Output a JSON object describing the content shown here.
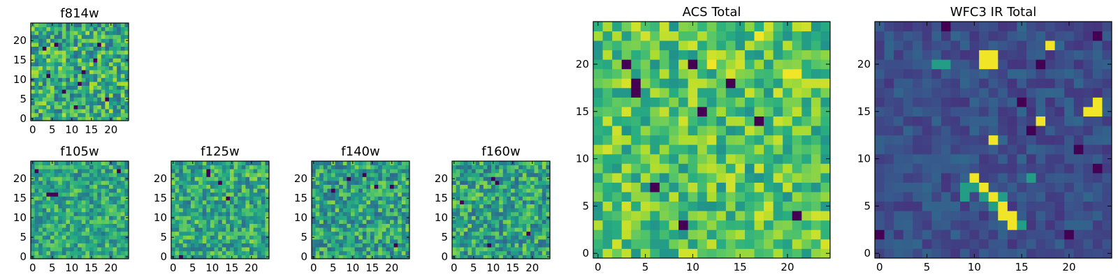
{
  "chart_data": [
    {
      "id": "f814w",
      "type": "heatmap",
      "title": "f814w",
      "grid_size": 25,
      "colormap": "viridis",
      "xlim": [
        -0.5,
        24.5
      ],
      "ylim": [
        -0.5,
        24.5
      ],
      "xticks": [
        0,
        5,
        10,
        15,
        20
      ],
      "xtick_labels": [
        "0",
        "5",
        "10",
        "15",
        "20"
      ],
      "yticks": [
        0,
        5,
        10,
        15,
        20
      ],
      "ytick_labels": [
        "0",
        "5",
        "10",
        "15",
        "20"
      ],
      "value_range": [
        0,
        1
      ],
      "seed": 814,
      "base_level": 0.62,
      "noise": 0.28,
      "dark_pixels": [
        [
          3,
          18
        ],
        [
          11,
          3
        ],
        [
          6,
          19
        ],
        [
          16,
          15
        ],
        [
          12,
          9
        ],
        [
          8,
          7
        ],
        [
          19,
          5
        ],
        [
          4,
          11
        ],
        [
          17,
          19
        ],
        [
          13,
          12
        ]
      ],
      "bright_pixels": [],
      "values": []
    },
    {
      "id": "f105w",
      "type": "heatmap",
      "title": "f105w",
      "grid_size": 25,
      "colormap": "viridis",
      "xlim": [
        -0.5,
        24.5
      ],
      "ylim": [
        -0.5,
        24.5
      ],
      "xticks": [
        0,
        5,
        10,
        15,
        20
      ],
      "xtick_labels": [
        "0",
        "5",
        "10",
        "15",
        "20"
      ],
      "yticks": [
        0,
        5,
        10,
        15,
        20
      ],
      "ytick_labels": [
        "0",
        "5",
        "10",
        "15",
        "20"
      ],
      "value_range": [
        0,
        1
      ],
      "seed": 105,
      "base_level": 0.6,
      "noise": 0.22,
      "dark_pixels": [
        [
          1,
          22
        ],
        [
          4,
          16
        ],
        [
          5,
          16
        ],
        [
          6,
          16
        ],
        [
          22,
          22
        ]
      ],
      "bright_pixels": [],
      "values": []
    },
    {
      "id": "f125w",
      "type": "heatmap",
      "title": "f125w",
      "grid_size": 25,
      "colormap": "viridis",
      "xlim": [
        -0.5,
        24.5
      ],
      "ylim": [
        -0.5,
        24.5
      ],
      "xticks": [
        0,
        5,
        10,
        15,
        20
      ],
      "xtick_labels": [
        "0",
        "5",
        "10",
        "15",
        "20"
      ],
      "yticks": [
        0,
        5,
        10,
        15,
        20
      ],
      "ytick_labels": [
        "0",
        "5",
        "10",
        "15",
        "20"
      ],
      "value_range": [
        0,
        1
      ],
      "seed": 125,
      "base_level": 0.6,
      "noise": 0.24,
      "dark_pixels": [
        [
          9,
          21
        ],
        [
          9,
          22
        ],
        [
          12,
          19
        ],
        [
          2,
          0
        ],
        [
          14,
          15
        ]
      ],
      "bright_pixels": [],
      "values": []
    },
    {
      "id": "f140w",
      "type": "heatmap",
      "title": "f140w",
      "grid_size": 25,
      "colormap": "viridis",
      "xlim": [
        -0.5,
        24.5
      ],
      "ylim": [
        -0.5,
        24.5
      ],
      "xticks": [
        0,
        5,
        10,
        15,
        20
      ],
      "xtick_labels": [
        "0",
        "5",
        "10",
        "15",
        "20"
      ],
      "yticks": [
        0,
        5,
        10,
        15,
        20
      ],
      "ytick_labels": [
        "0",
        "5",
        "10",
        "15",
        "20"
      ],
      "value_range": [
        0,
        1
      ],
      "seed": 140,
      "base_level": 0.58,
      "noise": 0.25,
      "dark_pixels": [
        [
          13,
          21
        ],
        [
          9,
          20
        ],
        [
          5,
          17
        ],
        [
          16,
          18
        ],
        [
          20,
          18
        ],
        [
          21,
          3
        ]
      ],
      "bright_pixels": [],
      "values": []
    },
    {
      "id": "f160w",
      "type": "heatmap",
      "title": "f160w",
      "grid_size": 25,
      "colormap": "viridis",
      "xlim": [
        -0.5,
        24.5
      ],
      "ylim": [
        -0.5,
        24.5
      ],
      "xticks": [
        0,
        5,
        10,
        15,
        20
      ],
      "xtick_labels": [
        "0",
        "5",
        "10",
        "15",
        "20"
      ],
      "yticks": [
        0,
        5,
        10,
        15,
        20
      ],
      "ytick_labels": [
        "0",
        "5",
        "10",
        "15",
        "20"
      ],
      "value_range": [
        0,
        1
      ],
      "seed": 160,
      "base_level": 0.58,
      "noise": 0.25,
      "dark_pixels": [
        [
          10,
          20
        ],
        [
          11,
          19
        ],
        [
          2,
          14
        ],
        [
          9,
          3
        ],
        [
          19,
          6
        ]
      ],
      "bright_pixels": [],
      "values": []
    },
    {
      "id": "acs-total",
      "type": "heatmap",
      "title": "ACS Total",
      "grid_size": 25,
      "colormap": "viridis",
      "xlim": [
        -0.5,
        24.5
      ],
      "ylim": [
        -0.5,
        24.5
      ],
      "xticks": [
        0,
        5,
        10,
        15,
        20
      ],
      "xtick_labels": [
        "0",
        "5",
        "10",
        "15",
        "20"
      ],
      "yticks": [
        0,
        5,
        10,
        15,
        20
      ],
      "ytick_labels": [
        "0",
        "5",
        "10",
        "15",
        "20"
      ],
      "value_range": [
        0,
        1
      ],
      "seed": 7,
      "base_level": 0.72,
      "noise": 0.22,
      "dark_pixels": [
        [
          3,
          20
        ],
        [
          10,
          20
        ],
        [
          4,
          18
        ],
        [
          4,
          17
        ],
        [
          14,
          18
        ],
        [
          11,
          15
        ],
        [
          6,
          7
        ],
        [
          9,
          3
        ],
        [
          21,
          4
        ],
        [
          17,
          14
        ]
      ],
      "bright_pixels": [
        [
          12,
          20
        ],
        [
          20,
          19
        ],
        [
          21,
          19
        ],
        [
          17,
          23
        ]
      ],
      "values": []
    },
    {
      "id": "wfc3-ir-total",
      "type": "heatmap",
      "title": "WFC3 IR Total",
      "grid_size": 25,
      "colormap": "viridis",
      "xlim": [
        -0.5,
        24.5
      ],
      "ylim": [
        -0.5,
        24.5
      ],
      "xticks": [
        0,
        5,
        10,
        15,
        20
      ],
      "xtick_labels": [
        "0",
        "5",
        "10",
        "15",
        "20"
      ],
      "yticks": [
        0,
        5,
        10,
        15,
        20
      ],
      "ytick_labels": [
        "0",
        "5",
        "10",
        "15",
        "20"
      ],
      "value_range": [
        0,
        1
      ],
      "seed": 3,
      "base_level": 0.24,
      "noise": 0.09,
      "dark_pixels": [
        [
          7,
          24
        ],
        [
          17,
          20
        ],
        [
          23,
          23
        ],
        [
          15,
          16
        ],
        [
          21,
          11
        ],
        [
          23,
          9
        ],
        [
          0,
          2
        ],
        [
          20,
          2
        ],
        [
          16,
          13
        ]
      ],
      "bright_pixels": [
        [
          11,
          21
        ],
        [
          12,
          21
        ],
        [
          11,
          20
        ],
        [
          12,
          20
        ],
        [
          18,
          22
        ],
        [
          12,
          12
        ],
        [
          17,
          14
        ],
        [
          23,
          16
        ],
        [
          23,
          15
        ],
        [
          22,
          15
        ],
        [
          10,
          8
        ],
        [
          11,
          7
        ],
        [
          12,
          6
        ],
        [
          13,
          5
        ],
        [
          13,
          4
        ],
        [
          14,
          4
        ],
        [
          14,
          3
        ]
      ],
      "medium_pixels": [
        [
          6,
          20
        ],
        [
          7,
          20
        ],
        [
          9,
          7
        ],
        [
          10,
          7
        ],
        [
          11,
          6
        ],
        [
          12,
          5
        ],
        [
          15,
          3
        ],
        [
          9,
          6
        ],
        [
          13,
          6
        ],
        [
          16,
          8
        ]
      ],
      "values": []
    }
  ]
}
